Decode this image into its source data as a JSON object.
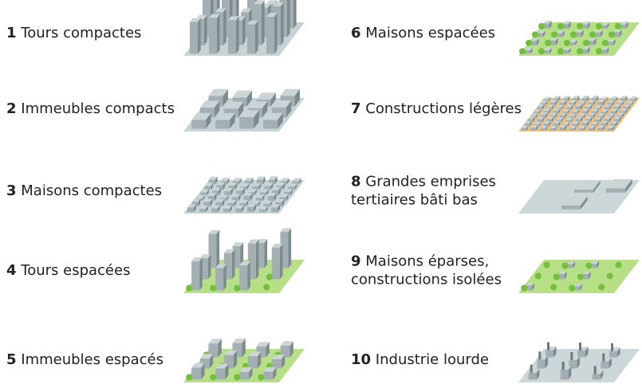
{
  "zones": [
    {
      "number": "1",
      "label": [
        "Tours compactes"
      ]
    },
    {
      "number": "2",
      "label": [
        "Immeubles compacts"
      ]
    },
    {
      "number": "3",
      "label": [
        "Maisons compactes"
      ]
    },
    {
      "number": "4",
      "label": [
        "Tours espacées"
      ]
    },
    {
      "number": "5",
      "label": [
        "Immeubles espacés"
      ]
    },
    {
      "number": "6",
      "label": [
        "Maisons espacées"
      ]
    },
    {
      "number": "7",
      "label": [
        "Constructions légères"
      ]
    },
    {
      "number": "8",
      "label": [
        "Grandes emprises",
        "tertiaires bâti bas"
      ]
    },
    {
      "number": "9",
      "label": [
        "Maisons éparses,",
        "constructions isolées"
      ]
    },
    {
      "number": "10",
      "label": [
        "Industrie lourde"
      ]
    }
  ]
}
